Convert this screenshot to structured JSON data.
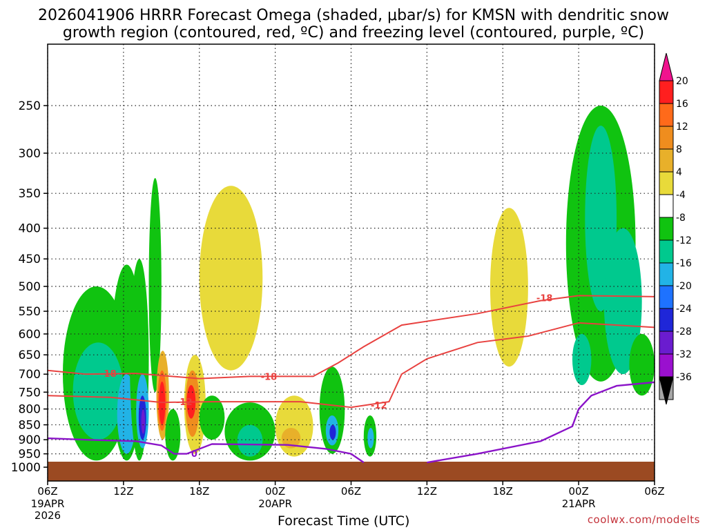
{
  "title_line1": "2026041906 HRRR Forecast Omega (shaded, μbar/s) for KMSN with dendritic snow",
  "title_line2": "growth region (contoured, red, ºC) and freezing level (contoured, purple, ºC)",
  "credit": "coolwx.com/modelts",
  "chart_data": {
    "type": "heatmap",
    "title": "2026041906 HRRR Forecast Omega (shaded, μbar/s) for KMSN with dendritic snow growth region (contoured, red, ºC) and freezing level (contoured, purple, ºC)",
    "xlabel": "Forecast Time (UTC)",
    "ylabel": "",
    "x_ticks": [
      {
        "hour": 0,
        "label": "06Z",
        "sub": [
          "19APR",
          "2026"
        ]
      },
      {
        "hour": 6,
        "label": "12Z",
        "sub": []
      },
      {
        "hour": 12,
        "label": "18Z",
        "sub": []
      },
      {
        "hour": 18,
        "label": "00Z",
        "sub": [
          "20APR"
        ]
      },
      {
        "hour": 24,
        "label": "06Z",
        "sub": []
      },
      {
        "hour": 30,
        "label": "12Z",
        "sub": []
      },
      {
        "hour": 36,
        "label": "18Z",
        "sub": []
      },
      {
        "hour": 42,
        "label": "00Z",
        "sub": [
          "21APR"
        ]
      },
      {
        "hour": 48,
        "label": "06Z",
        "sub": []
      }
    ],
    "xlim": [
      0,
      48
    ],
    "y_scale": "log-pressure (hPa), inverted",
    "ylim": [
      1000,
      200
    ],
    "y_ticks": [
      250,
      300,
      350,
      400,
      450,
      500,
      550,
      600,
      650,
      700,
      750,
      800,
      850,
      900,
      950,
      1000
    ],
    "colorbar": {
      "labels": [
        "20",
        "16",
        "12",
        "8",
        "4",
        "-4",
        "-8",
        "-12",
        "-16",
        "-20",
        "-24",
        "-28",
        "-32",
        "-36"
      ],
      "colors": [
        "#ff1f1f",
        "#ff6a1a",
        "#ef8d1e",
        "#e8b02a",
        "#e8da3a",
        "#ffffff",
        "#10c310",
        "#00c98e",
        "#22b3e6",
        "#1e72ff",
        "#1f26d8",
        "#6a1ccf",
        "#9a10cf",
        "#a6a6a6"
      ],
      "top_color": "#f0138e",
      "bottom_color": "#000000"
    },
    "dgz_contours": [
      {
        "label": "-18",
        "points": [
          [
            0,
            690
          ],
          [
            3,
            700
          ],
          [
            7,
            698
          ],
          [
            12,
            712
          ],
          [
            16,
            706
          ],
          [
            21,
            706
          ],
          [
            23,
            670
          ],
          [
            25,
            630
          ],
          [
            28,
            580
          ],
          [
            34,
            555
          ],
          [
            39,
            528
          ],
          [
            42,
            518
          ],
          [
            48,
            520
          ]
        ]
      },
      {
        "label": "-12",
        "points": [
          [
            0,
            760
          ],
          [
            5,
            765
          ],
          [
            9,
            780
          ],
          [
            13,
            778
          ],
          [
            20,
            778
          ],
          [
            24,
            795
          ],
          [
            27,
            778
          ],
          [
            28,
            700
          ],
          [
            30,
            660
          ],
          [
            34,
            620
          ],
          [
            38,
            605
          ],
          [
            42,
            575
          ],
          [
            48,
            585
          ]
        ]
      }
    ],
    "freezing_level": {
      "label": "0",
      "segments": [
        [
          [
            0,
            895
          ],
          [
            3,
            900
          ],
          [
            7,
            905
          ],
          [
            9,
            920
          ],
          [
            10,
            950
          ],
          [
            11,
            950
          ],
          [
            13,
            915
          ],
          [
            19,
            918
          ],
          [
            22,
            932
          ],
          [
            24,
            950
          ],
          [
            25,
            982
          ]
        ],
        [
          [
            30,
            982
          ],
          [
            34,
            950
          ],
          [
            39,
            905
          ],
          [
            41.5,
            855
          ],
          [
            42,
            800
          ],
          [
            43,
            760
          ],
          [
            45,
            732
          ],
          [
            48,
            722
          ]
        ]
      ]
    },
    "omega_cells": [
      {
        "t": [
          1.2,
          6.5
        ],
        "p": [
          500,
          975
        ],
        "value": -8
      },
      {
        "t": [
          5,
          7.5
        ],
        "p": [
          460,
          975
        ],
        "value": -4
      },
      {
        "t": [
          2,
          6
        ],
        "p": [
          620,
          900
        ],
        "value": -12
      },
      {
        "t": [
          5.5,
          7
        ],
        "p": [
          700,
          950
        ],
        "value": -16
      },
      {
        "t": [
          6.5,
          8
        ],
        "p": [
          450,
          975
        ],
        "value": -8
      },
      {
        "t": [
          7,
          8
        ],
        "p": [
          700,
          930
        ],
        "value": -16
      },
      {
        "t": [
          7.2,
          7.8
        ],
        "p": [
          760,
          900
        ],
        "value": -24
      },
      {
        "t": [
          7.4,
          7.7
        ],
        "p": [
          800,
          880
        ],
        "value": -28
      },
      {
        "t": [
          8,
          9
        ],
        "p": [
          330,
          750
        ],
        "value": -8
      },
      {
        "t": [
          8.6,
          9.6
        ],
        "p": [
          640,
          900
        ],
        "value": 8
      },
      {
        "t": [
          8.7,
          9.4
        ],
        "p": [
          690,
          870
        ],
        "value": 16
      },
      {
        "t": [
          8.8,
          9.3
        ],
        "p": [
          720,
          850
        ],
        "value": 20
      },
      {
        "t": [
          9.3,
          10.5
        ],
        "p": [
          800,
          975
        ],
        "value": -8
      },
      {
        "t": [
          10.8,
          12.5
        ],
        "p": [
          650,
          950
        ],
        "value": 4
      },
      {
        "t": [
          10.9,
          12
        ],
        "p": [
          690,
          890
        ],
        "value": 12
      },
      {
        "t": [
          11,
          11.7
        ],
        "p": [
          730,
          830
        ],
        "value": 20
      },
      {
        "t": [
          12,
          17
        ],
        "p": [
          340,
          690
        ],
        "value": 4
      },
      {
        "t": [
          12,
          14
        ],
        "p": [
          760,
          900
        ],
        "value": -8
      },
      {
        "t": [
          14,
          18
        ],
        "p": [
          780,
          975
        ],
        "value": -8
      },
      {
        "t": [
          15,
          17
        ],
        "p": [
          850,
          960
        ],
        "value": -12
      },
      {
        "t": [
          18,
          21
        ],
        "p": [
          760,
          960
        ],
        "value": 4
      },
      {
        "t": [
          18.5,
          20
        ],
        "p": [
          860,
          930
        ],
        "value": 8
      },
      {
        "t": [
          21.5,
          23.5
        ],
        "p": [
          680,
          950
        ],
        "value": -8
      },
      {
        "t": [
          22,
          23
        ],
        "p": [
          820,
          920
        ],
        "value": -16
      },
      {
        "t": [
          22.3,
          22.8
        ],
        "p": [
          850,
          900
        ],
        "value": -24
      },
      {
        "t": [
          25,
          26
        ],
        "p": [
          820,
          960
        ],
        "value": -8
      },
      {
        "t": [
          25.3,
          25.8
        ],
        "p": [
          860,
          930
        ],
        "value": -16
      },
      {
        "t": [
          35,
          38
        ],
        "p": [
          370,
          680
        ],
        "value": 4
      },
      {
        "t": [
          41,
          46.5
        ],
        "p": [
          250,
          720
        ],
        "value": -8
      },
      {
        "t": [
          42.5,
          45
        ],
        "p": [
          270,
          550
        ],
        "value": -12
      },
      {
        "t": [
          44,
          47
        ],
        "p": [
          400,
          700
        ],
        "value": -12
      },
      {
        "t": [
          46,
          48
        ],
        "p": [
          600,
          760
        ],
        "value": -8
      },
      {
        "t": [
          41.5,
          43
        ],
        "p": [
          600,
          730
        ],
        "value": -12
      }
    ]
  }
}
